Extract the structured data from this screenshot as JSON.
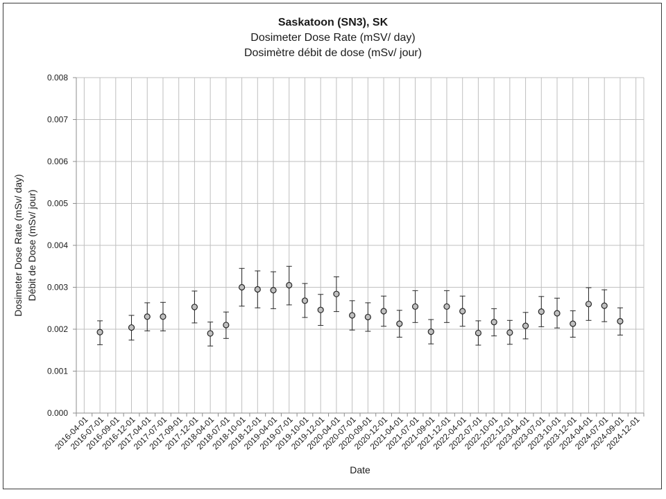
{
  "chart_data": {
    "type": "scatter",
    "title": "Saskatoon (SN3), SK",
    "subtitle": [
      "Dosimeter Dose Rate (mSV/ day)",
      "Dosimètre débit de dose (mSv/ jour)"
    ],
    "xlabel": "Date",
    "ylabel": [
      "Dosimeter Dose Rate (mSv/ day)",
      "Débit de Dose (mSv/ jour)"
    ],
    "ylim": [
      0,
      0.008
    ],
    "y_ticks": [
      "0.000",
      "0.001",
      "0.002",
      "0.003",
      "0.004",
      "0.005",
      "0.006",
      "0.007",
      "0.008"
    ],
    "grid": true,
    "legend": "none",
    "x_categories": [
      "2016-04-01",
      "2016-07-01",
      "2016-09-01",
      "2016-12-01",
      "2017-04-01",
      "2017-07-01",
      "2017-09-01",
      "2017-12-01",
      "2018-04-01",
      "2018-07-01",
      "2018-10-01",
      "2018-12-01",
      "2019-04-01",
      "2019-07-01",
      "2019-10-01",
      "2019-12-01",
      "2020-04-01",
      "2020-07-01",
      "2020-09-01",
      "2020-12-01",
      "2021-04-01",
      "2021-07-01",
      "2021-09-01",
      "2021-12-01",
      "2022-04-01",
      "2022-07-01",
      "2022-10-01",
      "2022-12-01",
      "2023-04-01",
      "2023-07-01",
      "2023-10-01",
      "2023-12-01",
      "2024-04-01",
      "2024-07-01",
      "2024-09-01",
      "2024-12-01"
    ],
    "points": [
      {
        "x": "2016-07-01",
        "y": 0.00193,
        "err_low": 0.00163,
        "err_high": 0.0022
      },
      {
        "x": "2016-12-01",
        "y": 0.00204,
        "err_low": 0.00174,
        "err_high": 0.00233
      },
      {
        "x": "2017-04-01",
        "y": 0.0023,
        "err_low": 0.00196,
        "err_high": 0.00263
      },
      {
        "x": "2017-07-01",
        "y": 0.0023,
        "err_low": 0.00196,
        "err_high": 0.00264
      },
      {
        "x": "2017-12-01",
        "y": 0.00253,
        "err_low": 0.00215,
        "err_high": 0.00291
      },
      {
        "x": "2018-04-01",
        "y": 0.0019,
        "err_low": 0.0016,
        "err_high": 0.00217
      },
      {
        "x": "2018-07-01",
        "y": 0.0021,
        "err_low": 0.00178,
        "err_high": 0.00241
      },
      {
        "x": "2018-10-01",
        "y": 0.003,
        "err_low": 0.00255,
        "err_high": 0.00345
      },
      {
        "x": "2018-12-01",
        "y": 0.00295,
        "err_low": 0.00251,
        "err_high": 0.00339
      },
      {
        "x": "2019-04-01",
        "y": 0.00293,
        "err_low": 0.00249,
        "err_high": 0.00337
      },
      {
        "x": "2019-07-01",
        "y": 0.00305,
        "err_low": 0.00258,
        "err_high": 0.0035
      },
      {
        "x": "2019-10-01",
        "y": 0.00268,
        "err_low": 0.00228,
        "err_high": 0.00309
      },
      {
        "x": "2019-12-01",
        "y": 0.00246,
        "err_low": 0.00209,
        "err_high": 0.00283
      },
      {
        "x": "2020-04-01",
        "y": 0.00284,
        "err_low": 0.00242,
        "err_high": 0.00325
      },
      {
        "x": "2020-07-01",
        "y": 0.00233,
        "err_low": 0.00198,
        "err_high": 0.00268
      },
      {
        "x": "2020-09-01",
        "y": 0.00229,
        "err_low": 0.00195,
        "err_high": 0.00263
      },
      {
        "x": "2020-12-01",
        "y": 0.00243,
        "err_low": 0.00207,
        "err_high": 0.00279
      },
      {
        "x": "2021-04-01",
        "y": 0.00213,
        "err_low": 0.00181,
        "err_high": 0.00245
      },
      {
        "x": "2021-07-01",
        "y": 0.00254,
        "err_low": 0.00216,
        "err_high": 0.00292
      },
      {
        "x": "2021-09-01",
        "y": 0.00194,
        "err_low": 0.00165,
        "err_high": 0.00223
      },
      {
        "x": "2021-12-01",
        "y": 0.00254,
        "err_low": 0.00216,
        "err_high": 0.00292
      },
      {
        "x": "2022-04-01",
        "y": 0.00243,
        "err_low": 0.00207,
        "err_high": 0.00279
      },
      {
        "x": "2022-07-01",
        "y": 0.00191,
        "err_low": 0.00162,
        "err_high": 0.0022
      },
      {
        "x": "2022-10-01",
        "y": 0.00217,
        "err_low": 0.00184,
        "err_high": 0.00249
      },
      {
        "x": "2022-12-01",
        "y": 0.00192,
        "err_low": 0.00164,
        "err_high": 0.00221
      },
      {
        "x": "2023-04-01",
        "y": 0.00208,
        "err_low": 0.00177,
        "err_high": 0.0024
      },
      {
        "x": "2023-07-01",
        "y": 0.00242,
        "err_low": 0.00206,
        "err_high": 0.00278
      },
      {
        "x": "2023-10-01",
        "y": 0.00238,
        "err_low": 0.00203,
        "err_high": 0.00274
      },
      {
        "x": "2023-12-01",
        "y": 0.00213,
        "err_low": 0.00181,
        "err_high": 0.00244
      },
      {
        "x": "2024-04-01",
        "y": 0.0026,
        "err_low": 0.00221,
        "err_high": 0.00299
      },
      {
        "x": "2024-07-01",
        "y": 0.00256,
        "err_low": 0.00218,
        "err_high": 0.00294
      },
      {
        "x": "2024-09-01",
        "y": 0.00219,
        "err_low": 0.00186,
        "err_high": 0.00251
      }
    ],
    "colors": {
      "marker_fill": "#bfbfbf",
      "marker_stroke": "#262626",
      "grid": "#bfbfbf",
      "axis": "#8c8c8c"
    }
  }
}
